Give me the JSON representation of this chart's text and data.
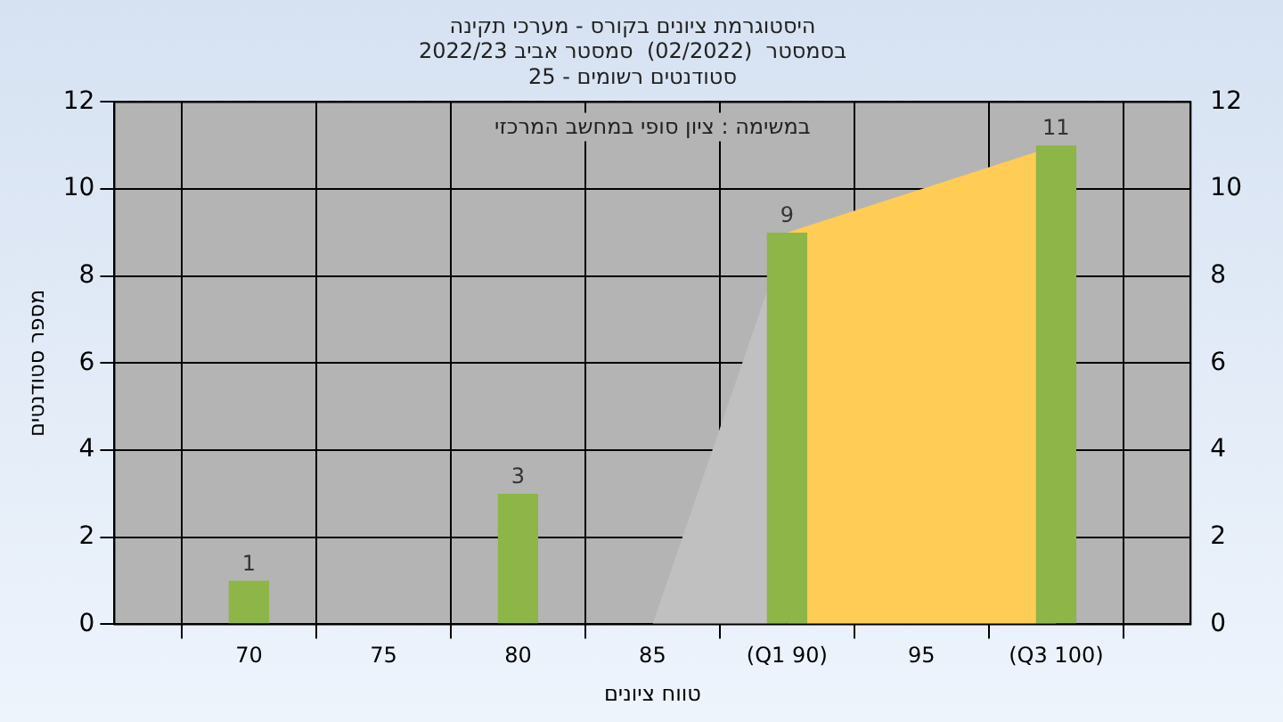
{
  "chart_data": {
    "type": "bar",
    "title": "היסטוגרמת ציונים בקורס - מערכי תקינה",
    "subtitle": "בסמסטר  (02/2022)  סמסטר אביב 2022/23\nסטודנטים רשומים - 25",
    "xlabel": "טווח ציונים",
    "ylabel": "מספר סטודנטים",
    "annotations": [
      "במשימה : ציון סופי במחשב המרכזי"
    ],
    "series": [
      {
        "color": "#8db548",
        "x": [
          70,
          80,
          90,
          100
        ],
        "values": [
          1,
          3,
          9,
          11
        ],
        "value_labels": [
          "1",
          "3",
          "9",
          "11"
        ]
      },
      {
        "type": "area",
        "color": "#c0c0c0",
        "x": [
          85,
          90
        ],
        "values": [
          0,
          9
        ]
      },
      {
        "type": "area",
        "color": "#ffcc55",
        "x": [
          90,
          100
        ],
        "values": [
          9,
          11
        ]
      }
    ],
    "grid": true,
    "legend": false,
    "xlim": [
      65,
      105
    ],
    "xticks": [
      70,
      75,
      80,
      85,
      {
        "value": 90,
        "label": "(Q1 90)"
      },
      95,
      {
        "value": 100,
        "label": "(Q3 100)"
      }
    ],
    "ylim": [
      0,
      12
    ],
    "yticks": [
      0,
      2,
      4,
      6,
      8,
      10,
      12
    ],
    "y2lim": [
      0,
      12
    ],
    "y2ticks": [
      0,
      2,
      4,
      6,
      8,
      10,
      12
    ]
  }
}
